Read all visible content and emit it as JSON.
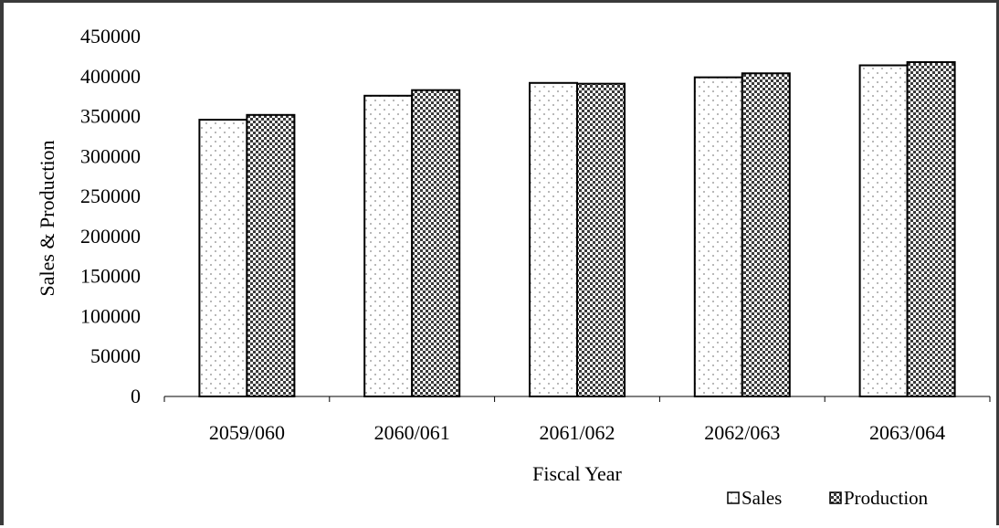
{
  "chart_data": {
    "type": "bar",
    "xlabel": "Fiscal Year",
    "ylabel": "Sales & Production",
    "categories": [
      "2059/060",
      "2060/061",
      "2061/062",
      "2062/063",
      "2063/064"
    ],
    "series": [
      {
        "name": "Sales",
        "values": [
          346000,
          376000,
          392000,
          399000,
          414000
        ]
      },
      {
        "name": "Production",
        "values": [
          352000,
          383000,
          391000,
          404000,
          418000
        ]
      }
    ],
    "ylim": [
      0,
      450000
    ],
    "yticks": [
      "0",
      "50000",
      "100000",
      "150000",
      "200000",
      "250000",
      "300000",
      "350000",
      "400000",
      "450000"
    ],
    "grid": false,
    "legend": "bottom-right"
  }
}
